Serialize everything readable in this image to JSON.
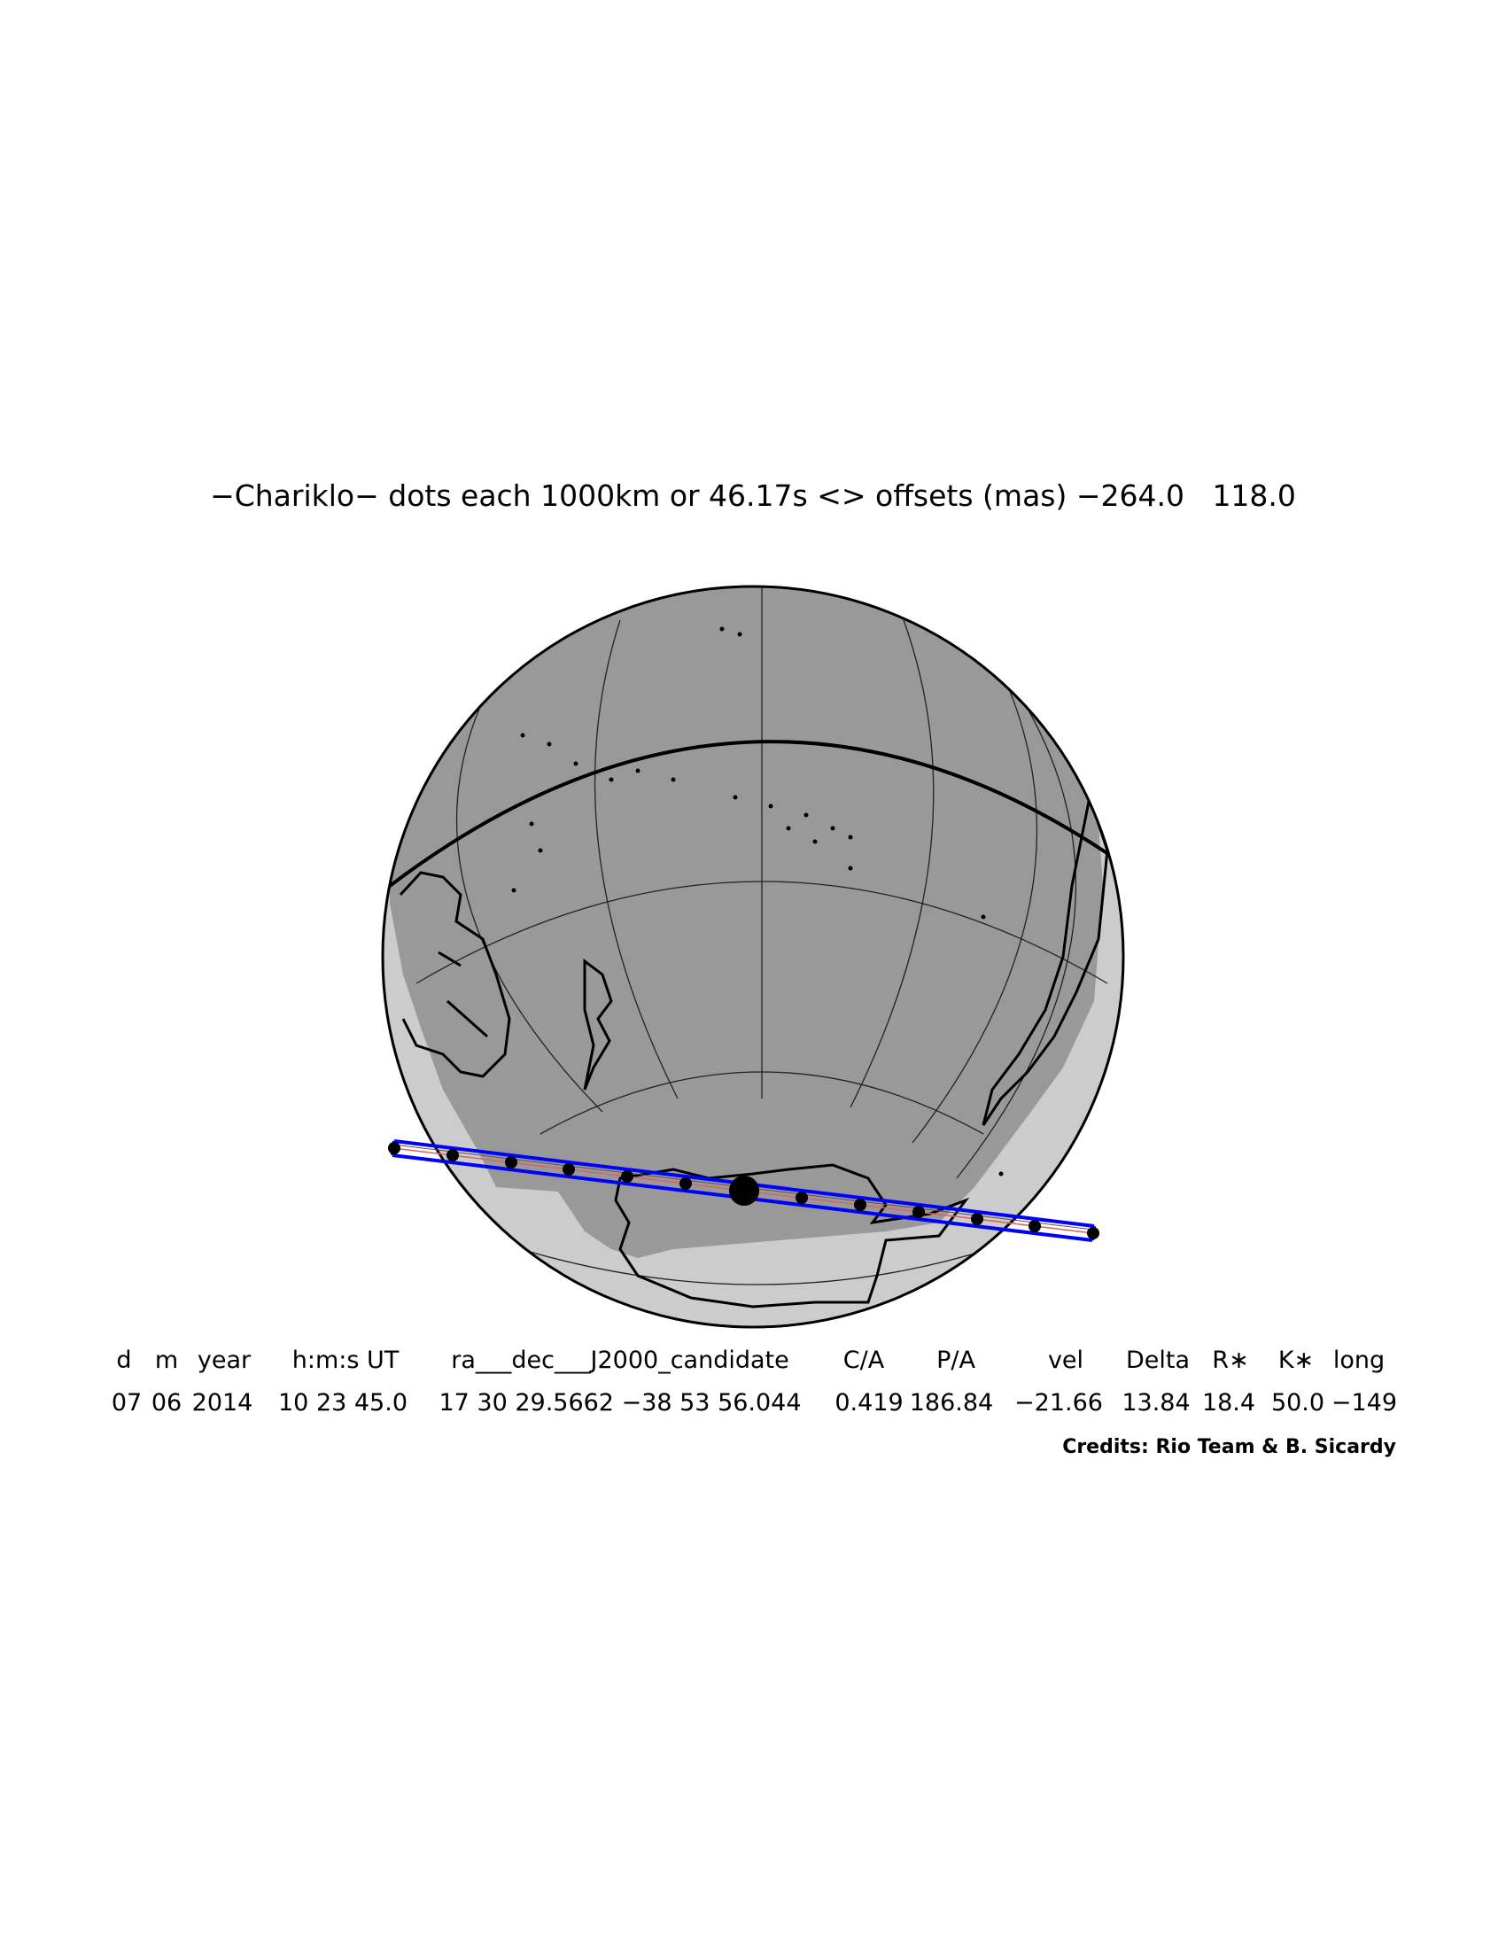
{
  "title": "−Chariklo− dots each 1000km or 46.17s <> offsets (mas) −264.0   118.0",
  "table": {
    "headers": [
      "d",
      "m",
      "year",
      "h:m:s UT",
      "ra___dec___J2000_candidate",
      "C/A",
      "P/A",
      "vel",
      "Delta",
      "R∗",
      "K∗",
      "long"
    ],
    "values": [
      "07",
      "06",
      "2014",
      "10 23 45.0",
      "17 30 29.5662 −38 53 56.044",
      "0.419",
      "186.84",
      "−21.66",
      "13.84",
      "18.4",
      "50.0",
      "−149"
    ]
  },
  "credits": "Credits: Rio Team & B. Sicardy",
  "colors": {
    "night": "#999999",
    "day": "#cccccc",
    "path": "#0000ff",
    "centerline": "#e06060",
    "ink": "#000000"
  }
}
